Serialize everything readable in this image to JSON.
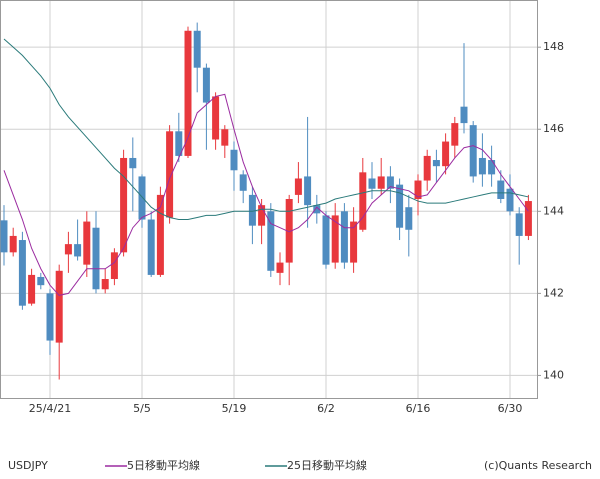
{
  "chart_data": {
    "type": "candlestick",
    "symbol": "USDJPY",
    "credit": "(c)Quants Research",
    "categories": [
      null,
      null,
      null,
      null,
      null,
      "25/4/21",
      null,
      null,
      null,
      null,
      null,
      null,
      null,
      null,
      null,
      "5/5",
      null,
      null,
      null,
      null,
      null,
      null,
      null,
      null,
      null,
      "5/19",
      null,
      null,
      null,
      null,
      null,
      null,
      null,
      null,
      null,
      "6/2",
      null,
      null,
      null,
      null,
      null,
      null,
      null,
      null,
      null,
      "6/16",
      null,
      null,
      null,
      null,
      null,
      null,
      null,
      null,
      null,
      "6/30",
      null,
      null
    ],
    "open": [
      143.78,
      143.0,
      143.3,
      141.75,
      142.4,
      142.0,
      140.8,
      142.95,
      143.2,
      142.7,
      143.6,
      142.1,
      142.35,
      143.0,
      145.3,
      144.85,
      143.8,
      142.45,
      143.85,
      145.95,
      145.35,
      148.4,
      147.5,
      145.75,
      145.6,
      145.5,
      144.9,
      144.4,
      143.65,
      144.0,
      142.5,
      142.75,
      144.4,
      144.85,
      144.15,
      143.9,
      142.75,
      144.0,
      142.75,
      143.55,
      144.8,
      144.55,
      144.85,
      144.65,
      144.1,
      144.3,
      144.75,
      145.25,
      145.1,
      145.6,
      146.55,
      146.1,
      145.3,
      145.25,
      144.75,
      144.55,
      143.95,
      143.4
    ],
    "high": [
      144.15,
      143.6,
      143.5,
      142.6,
      142.5,
      142.1,
      142.7,
      143.5,
      143.8,
      144.0,
      144.0,
      142.6,
      143.1,
      145.5,
      145.8,
      144.9,
      144.0,
      144.6,
      146.1,
      146.4,
      148.5,
      148.6,
      147.6,
      146.9,
      146.1,
      145.7,
      145.0,
      144.6,
      144.3,
      144.2,
      143.0,
      144.4,
      145.2,
      146.3,
      144.4,
      144.0,
      144.2,
      144.2,
      144.1,
      145.3,
      145.2,
      145.3,
      145.1,
      144.8,
      144.4,
      144.9,
      145.5,
      145.5,
      145.9,
      146.3,
      148.1,
      146.2,
      145.9,
      145.6,
      145.0,
      144.9,
      144.1,
      144.4
    ],
    "low": [
      142.68,
      142.9,
      141.6,
      141.7,
      142.1,
      140.5,
      139.9,
      142.5,
      142.8,
      142.4,
      142.0,
      142.0,
      142.2,
      142.9,
      144.0,
      143.6,
      142.4,
      142.4,
      143.7,
      145.2,
      145.3,
      146.9,
      145.5,
      145.5,
      145.3,
      144.5,
      144.2,
      143.2,
      143.2,
      142.4,
      142.2,
      142.2,
      144.2,
      143.6,
      143.7,
      142.6,
      142.6,
      142.6,
      142.5,
      143.5,
      144.3,
      144.4,
      144.2,
      143.3,
      142.9,
      143.9,
      144.5,
      144.7,
      144.9,
      145.3,
      145.9,
      144.7,
      144.6,
      144.6,
      144.2,
      143.9,
      142.7,
      143.3
    ],
    "close": [
      143.0,
      143.4,
      141.7,
      142.45,
      142.2,
      140.85,
      142.55,
      143.2,
      142.9,
      143.75,
      142.1,
      142.35,
      143.0,
      145.3,
      145.05,
      143.8,
      142.45,
      144.4,
      145.95,
      145.35,
      148.4,
      147.5,
      146.65,
      146.8,
      146.0,
      145.0,
      144.5,
      143.65,
      144.15,
      142.55,
      142.75,
      144.3,
      144.8,
      144.15,
      143.95,
      142.7,
      143.9,
      142.75,
      143.75,
      144.95,
      144.55,
      144.85,
      144.55,
      143.6,
      143.55,
      144.75,
      145.35,
      145.1,
      145.7,
      146.15,
      146.15,
      144.85,
      144.9,
      144.9,
      144.3,
      144.0,
      143.4,
      144.25
    ],
    "up_color": "#e8383d",
    "down_color": "#4f8cc0",
    "lines": [
      {
        "name": "5日移動平均線",
        "color": "#9b2ca0",
        "values": [
          145.0,
          144.4,
          143.8,
          143.1,
          142.6,
          142.2,
          141.95,
          142.0,
          142.3,
          142.6,
          142.6,
          142.6,
          142.75,
          143.1,
          143.6,
          143.85,
          143.95,
          144.1,
          144.8,
          145.3,
          145.8,
          146.4,
          146.6,
          146.8,
          146.85,
          146.0,
          145.2,
          144.6,
          144.1,
          143.7,
          143.6,
          143.5,
          143.6,
          143.8,
          144.1,
          143.9,
          143.75,
          143.6,
          143.6,
          143.85,
          144.2,
          144.4,
          144.6,
          144.55,
          144.5,
          144.35,
          144.4,
          144.7,
          145.0,
          145.3,
          145.55,
          145.6,
          145.5,
          145.25,
          144.9,
          144.6,
          144.3,
          144.0
        ]
      },
      {
        "name": "25日移動平均線",
        "color": "#2a7a7a",
        "values": [
          148.2,
          148.0,
          147.8,
          147.55,
          147.3,
          147.0,
          146.6,
          146.3,
          146.05,
          145.8,
          145.55,
          145.3,
          145.05,
          144.85,
          144.6,
          144.35,
          144.1,
          143.95,
          143.85,
          143.8,
          143.8,
          143.85,
          143.9,
          143.9,
          143.95,
          144.0,
          144.0,
          144.0,
          144.05,
          144.05,
          144.0,
          144.0,
          144.05,
          144.1,
          144.15,
          144.2,
          144.3,
          144.35,
          144.4,
          144.45,
          144.5,
          144.5,
          144.5,
          144.45,
          144.35,
          144.25,
          144.2,
          144.2,
          144.2,
          144.25,
          144.3,
          144.35,
          144.4,
          144.45,
          144.45,
          144.45,
          144.4,
          144.35
        ]
      }
    ],
    "ylim": [
      139.45,
      149.15
    ],
    "yticks": [
      140,
      142,
      144,
      146,
      148
    ],
    "grid": true
  }
}
